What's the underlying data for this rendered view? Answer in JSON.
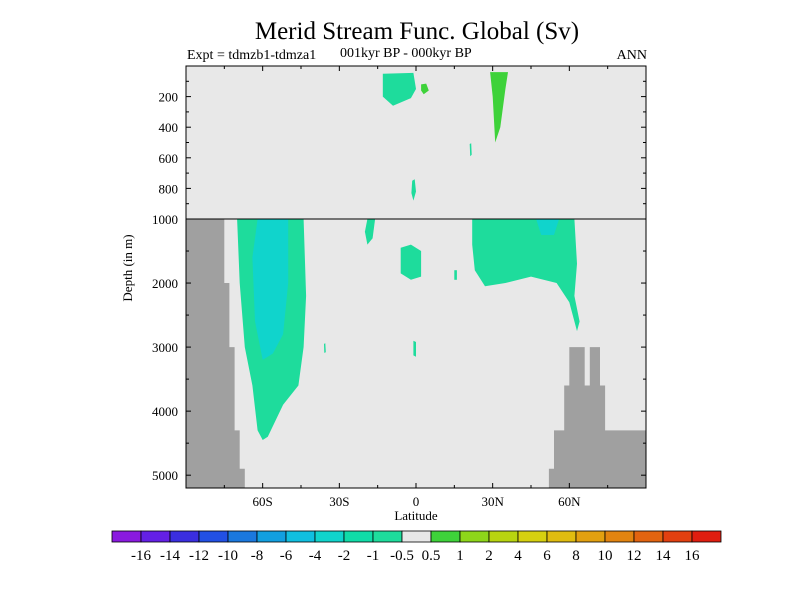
{
  "chart_data": {
    "type": "heatmap",
    "title": "Merid Stream Func. Global (Sv)",
    "subtitle_left": "Expt = tdmzb1-tdmza1",
    "subtitle_mid": "001kyr BP - 000kyr BP",
    "subtitle_right": "ANN",
    "xlabel": "Latitude",
    "ylabel": "Depth (in m)",
    "xlim": [
      -90,
      90
    ],
    "x_ticks": [
      {
        "value": -60,
        "label": "60S"
      },
      {
        "value": -30,
        "label": "30S"
      },
      {
        "value": 0,
        "label": "0"
      },
      {
        "value": 30,
        "label": "30N"
      },
      {
        "value": 60,
        "label": "60N"
      }
    ],
    "upper_panel": {
      "ylim": [
        1000,
        0
      ],
      "y_ticks": [
        {
          "value": 200,
          "label": "200"
        },
        {
          "value": 400,
          "label": "400"
        },
        {
          "value": 600,
          "label": "600"
        },
        {
          "value": 800,
          "label": "800"
        },
        {
          "value": 1000,
          "label": "1000"
        }
      ]
    },
    "lower_panel": {
      "ylim": [
        5200,
        1000
      ],
      "y_ticks": [
        {
          "value": 2000,
          "label": "2000"
        },
        {
          "value": 3000,
          "label": "3000"
        },
        {
          "value": 4000,
          "label": "4000"
        },
        {
          "value": 5000,
          "label": "5000"
        }
      ]
    },
    "regions": [
      {
        "name": "upper-teal-patch-tropics",
        "value": -1,
        "points": [
          [
            -13,
            50
          ],
          [
            -1,
            45
          ],
          [
            0,
            150
          ],
          [
            -2,
            210
          ],
          [
            -9,
            260
          ],
          [
            -13,
            200
          ]
        ]
      },
      {
        "name": "upper-green-patch-small",
        "value": 1,
        "points": [
          [
            2,
            120
          ],
          [
            4,
            115
          ],
          [
            5,
            160
          ],
          [
            3,
            185
          ],
          [
            2,
            160
          ]
        ]
      },
      {
        "name": "upper-green-column-30N",
        "value": 1,
        "points": [
          [
            29,
            40
          ],
          [
            36,
            40
          ],
          [
            35,
            150
          ],
          [
            33,
            400
          ],
          [
            31,
            500
          ],
          [
            30,
            200
          ]
        ]
      },
      {
        "name": "upper-teal-dot-800",
        "value": -1,
        "points": [
          [
            -1.5,
            750
          ],
          [
            -0.5,
            740
          ],
          [
            0,
            820
          ],
          [
            -1,
            880
          ],
          [
            -1.8,
            830
          ]
        ]
      },
      {
        "name": "upper-teal-dot-550",
        "value": -1,
        "points": [
          [
            21,
            510
          ],
          [
            21.6,
            505
          ],
          [
            21.8,
            580
          ],
          [
            21.2,
            590
          ]
        ]
      },
      {
        "name": "south-cell-outer",
        "value": -1,
        "points": [
          [
            -70,
            1000
          ],
          [
            -44,
            1000
          ],
          [
            -43,
            2200
          ],
          [
            -44,
            3000
          ],
          [
            -46,
            3600
          ],
          [
            -52,
            3900
          ],
          [
            -58,
            4400
          ],
          [
            -60,
            4450
          ],
          [
            -62,
            4300
          ],
          [
            -64,
            3600
          ],
          [
            -67,
            3000
          ],
          [
            -69,
            2000
          ]
        ]
      },
      {
        "name": "south-cell-core",
        "value": -2,
        "points": [
          [
            -62,
            1000
          ],
          [
            -50,
            1000
          ],
          [
            -50,
            2000
          ],
          [
            -52,
            2800
          ],
          [
            -56,
            3100
          ],
          [
            -60,
            3200
          ],
          [
            -63,
            2600
          ],
          [
            -64,
            1600
          ]
        ]
      },
      {
        "name": "teal-patch-20S",
        "value": -1,
        "points": [
          [
            -19,
            1000
          ],
          [
            -16,
            1000
          ],
          [
            -17,
            1300
          ],
          [
            -19,
            1400
          ],
          [
            -20,
            1200
          ]
        ]
      },
      {
        "name": "teal-patch-eq",
        "value": -1,
        "points": [
          [
            -6,
            1450
          ],
          [
            -2,
            1400
          ],
          [
            2,
            1500
          ],
          [
            2,
            1900
          ],
          [
            -2,
            1950
          ],
          [
            -6,
            1850
          ]
        ]
      },
      {
        "name": "north-cell",
        "value": -1,
        "points": [
          [
            22,
            1000
          ],
          [
            62,
            1000
          ],
          [
            63,
            1700
          ],
          [
            62,
            2200
          ],
          [
            64,
            2600
          ],
          [
            63,
            2750
          ],
          [
            60,
            2300
          ],
          [
            55,
            2000
          ],
          [
            45,
            1900
          ],
          [
            35,
            2000
          ],
          [
            27,
            2050
          ],
          [
            23,
            1800
          ],
          [
            22,
            1400
          ]
        ]
      },
      {
        "name": "north-cell-core",
        "value": -2,
        "points": [
          [
            47,
            1000
          ],
          [
            56,
            1000
          ],
          [
            54,
            1250
          ],
          [
            49,
            1250
          ]
        ]
      },
      {
        "name": "teal-dot-3000",
        "value": -1,
        "points": [
          [
            -36,
            2950
          ],
          [
            -35.5,
            2940
          ],
          [
            -35.3,
            3080
          ],
          [
            -35.9,
            3090
          ]
        ]
      },
      {
        "name": "teal-dot-eq-3000",
        "value": -1,
        "points": [
          [
            -1,
            2900
          ],
          [
            0,
            2920
          ],
          [
            0,
            3150
          ],
          [
            -1,
            3130
          ]
        ]
      },
      {
        "name": "teal-dot-15N",
        "value": -1,
        "points": [
          [
            15,
            1800
          ],
          [
            16,
            1800
          ],
          [
            16,
            1950
          ],
          [
            15,
            1950
          ]
        ]
      }
    ],
    "land_mask": [
      {
        "name": "antarctica-bottom",
        "points": [
          [
            -90,
            1000
          ],
          [
            -75,
            1000
          ],
          [
            -75,
            2000
          ],
          [
            -73,
            2000
          ],
          [
            -73,
            3000
          ],
          [
            -71,
            3000
          ],
          [
            -71,
            4300
          ],
          [
            -69,
            4300
          ],
          [
            -69,
            4900
          ],
          [
            -67,
            4900
          ],
          [
            -67,
            5200
          ],
          [
            -90,
            5200
          ]
        ]
      },
      {
        "name": "arctic-bottom",
        "points": [
          [
            52,
            5200
          ],
          [
            52,
            4900
          ],
          [
            54,
            4900
          ],
          [
            54,
            4300
          ],
          [
            58,
            4300
          ],
          [
            58,
            3600
          ],
          [
            60,
            3600
          ],
          [
            60,
            3000
          ],
          [
            66,
            3000
          ],
          [
            66,
            3600
          ],
          [
            68,
            3600
          ],
          [
            68,
            3000
          ],
          [
            72,
            3000
          ],
          [
            72,
            3600
          ],
          [
            74,
            3600
          ],
          [
            74,
            4300
          ],
          [
            90,
            4300
          ],
          [
            90,
            5200
          ]
        ]
      }
    ],
    "colorbar": {
      "labels": [
        "-16",
        "-14",
        "-12",
        "-10",
        "-8",
        "-6",
        "-4",
        "-2",
        "-1",
        "-0.5",
        "0.5",
        "1",
        "2",
        "4",
        "6",
        "8",
        "10",
        "12",
        "14",
        "16"
      ],
      "colors": [
        "#8a1adf",
        "#6420e6",
        "#3a2ee0",
        "#2250e4",
        "#1b78de",
        "#129fe0",
        "#10bfe0",
        "#10d4cc",
        "#10dca8",
        "#1edc9c",
        "#e8e8e8",
        "#3ed23a",
        "#8ed61a",
        "#b8d410",
        "#d6d010",
        "#e0bc10",
        "#e2a010",
        "#e28410",
        "#e26410",
        "#e24010",
        "#e01e10"
      ]
    },
    "colors": {
      "background": "#e8e8e8",
      "land": "#a0a0a0",
      "negative_fill": "#1edc9c",
      "positive_fill": "#3ed23a",
      "core_fill": "#10d4cc"
    }
  }
}
